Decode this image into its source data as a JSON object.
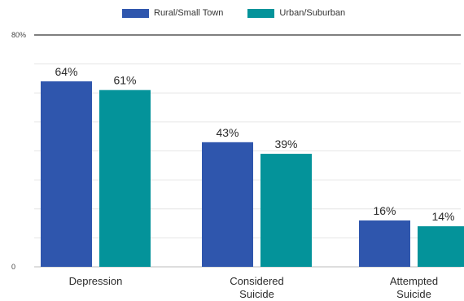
{
  "chart_data": {
    "type": "bar",
    "categories": [
      [
        "Depression"
      ],
      [
        "Considered",
        "Suicide"
      ],
      [
        "Attempted",
        "Suicide"
      ]
    ],
    "series": [
      {
        "name": "Rural/Small Town",
        "values": [
          64,
          43,
          16
        ],
        "labels": [
          "64%",
          "43%",
          "16%"
        ],
        "color": "#2f56ad"
      },
      {
        "name": "Urban/Suburban",
        "values": [
          61,
          39,
          14
        ],
        "labels": [
          "61%",
          "39%",
          "14%"
        ],
        "color": "#04939a"
      }
    ],
    "ylim": [
      0,
      80
    ],
    "yticks": [
      {
        "value": 80,
        "label": "80%"
      },
      {
        "value": 0,
        "label": "0"
      }
    ],
    "grid": true,
    "legend_position": "top"
  }
}
